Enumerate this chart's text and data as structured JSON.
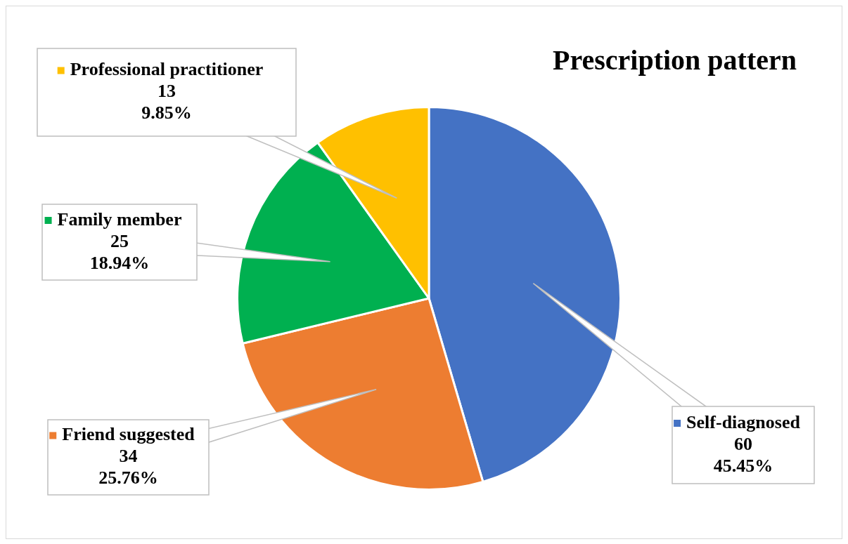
{
  "chart_data": {
    "type": "pie",
    "title": "Prescription pattern",
    "categories": [
      "Self-diagnosed",
      "Friend suggested",
      "Family member",
      "Professional practitioner"
    ],
    "values": [
      45.45,
      25.76,
      18.94,
      9.85
    ],
    "colors": [
      "#4472c4",
      "#ed7d31",
      "#00b050",
      "#ffc000"
    ],
    "value_labels": [
      "60\n45.45%",
      "34\n25.76%",
      "25\n18.94%",
      "13\n9.85%"
    ],
    "legend": "left"
  }
}
